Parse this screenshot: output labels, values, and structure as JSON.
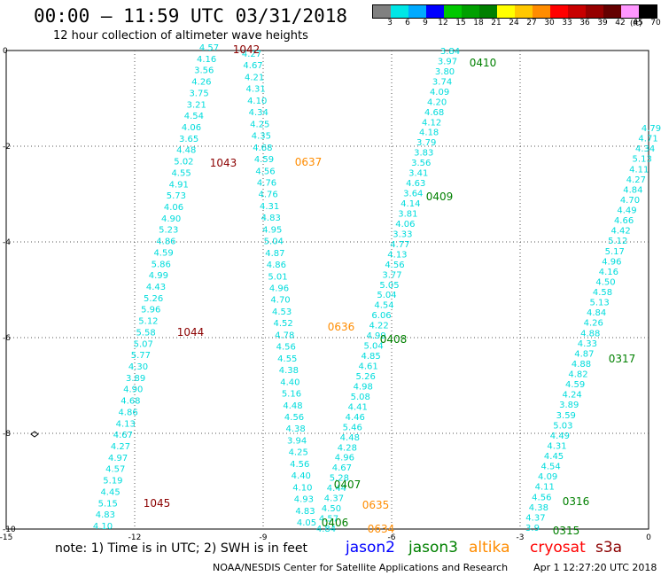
{
  "header": {
    "title": "00:00 – 11:59 UTC 03/31/2018",
    "subtitle": "12 hour collection of altimeter wave heights"
  },
  "colorbar": {
    "unit": "(ft)",
    "bins": [
      {
        "label": "3",
        "color": "#808080"
      },
      {
        "label": "6",
        "color": "#00e6e6"
      },
      {
        "label": "9",
        "color": "#00aaff"
      },
      {
        "label": "12",
        "color": "#0000ff"
      },
      {
        "label": "15",
        "color": "#00c800"
      },
      {
        "label": "18",
        "color": "#00a000"
      },
      {
        "label": "21",
        "color": "#008000"
      },
      {
        "label": "24",
        "color": "#ffff00"
      },
      {
        "label": "27",
        "color": "#ffc800"
      },
      {
        "label": "30",
        "color": "#ff8c00"
      },
      {
        "label": "33",
        "color": "#ff0000"
      },
      {
        "label": "36",
        "color": "#c80000"
      },
      {
        "label": "39",
        "color": "#960000"
      },
      {
        "label": "42",
        "color": "#640000"
      },
      {
        "label": "45",
        "color": "#ff96ff"
      },
      {
        "label": "70",
        "color": "#000000"
      }
    ]
  },
  "axes": {
    "lon_labels": [
      "-15",
      "-12",
      "-9",
      "-6",
      "-3",
      "0"
    ],
    "lat_labels": [
      "0",
      "-2",
      "-4",
      "-6",
      "-8",
      "-10"
    ]
  },
  "track_labels": [
    {
      "text": "1042",
      "color": "#8b0000"
    },
    {
      "text": "1043",
      "color": "#8b0000"
    },
    {
      "text": "1044",
      "color": "#8b0000"
    },
    {
      "text": "1045",
      "color": "#8b0000"
    },
    {
      "text": "0637",
      "color": "#ff8c00"
    },
    {
      "text": "0636",
      "color": "#ff8c00"
    },
    {
      "text": "0635",
      "color": "#ff8c00"
    },
    {
      "text": "0634",
      "color": "#ff8c00"
    },
    {
      "text": "0410",
      "color": "#008000"
    },
    {
      "text": "0409",
      "color": "#008000"
    },
    {
      "text": "0408",
      "color": "#008000"
    },
    {
      "text": "0407",
      "color": "#008000"
    },
    {
      "text": "0406",
      "color": "#008000"
    },
    {
      "text": "0317",
      "color": "#008000"
    },
    {
      "text": "0316",
      "color": "#008000"
    },
    {
      "text": "0315",
      "color": "#008000"
    }
  ],
  "tracks": [
    {
      "values": [
        "4.57",
        "4.16",
        "3.56",
        "4.26",
        "3.75",
        "3.21",
        "4.54",
        "4.06",
        "3.65",
        "4.48",
        "5.02",
        "4.55",
        "4.91",
        "5.73",
        "4.06",
        "4.90",
        "5.23",
        "4.86",
        "4.59",
        "5.86",
        "4.99",
        "4.43",
        "5.26",
        "5.96",
        "5.12",
        "5.58",
        "5.07",
        "5.77",
        "4.30",
        "3.89",
        "4.90",
        "4.68",
        "4.86",
        "4.13",
        "4.67",
        "4.27",
        "4.97",
        "4.57",
        "5.19",
        "4.45",
        "5.15",
        "4.83",
        "4.10"
      ]
    },
    {
      "values": [
        "4.27",
        "4.67",
        "4.21",
        "4.31",
        "4.10",
        "4.34",
        "4.25",
        "4.35",
        "4.68",
        "4.59",
        "4.56",
        "4.76",
        "4.76",
        "4.31",
        "4.83",
        "4.95",
        "5.04",
        "4.87",
        "4.86",
        "5.01",
        "4.96",
        "4.70",
        "4.53",
        "4.52",
        "4.78",
        "4.56",
        "4.55",
        "4.38",
        "4.40",
        "5.16",
        "4.48",
        "4.56",
        "4.38",
        "3.94",
        "4.25",
        "4.56",
        "4.40",
        "4.10",
        "4.93",
        "4.83",
        "4.05"
      ]
    },
    {
      "values": [
        "3.84",
        "3.97",
        "3.80",
        "3.74",
        "4.09",
        "4.20",
        "4.68",
        "4.12",
        "4.18",
        "3.79",
        "3.83",
        "3.56",
        "3.41",
        "4.63",
        "3.64",
        "4.14",
        "3.81",
        "4.06",
        "3.33",
        "4.77",
        "4.13",
        "4.56",
        "3.77",
        "5.05",
        "5.04",
        "4.54",
        "6.06",
        "4.22",
        "4.99",
        "5.04",
        "4.85",
        "4.61",
        "5.26",
        "4.98",
        "5.08",
        "4.41",
        "4.46",
        "5.46",
        "4.48",
        "4.28",
        "4.96",
        "4.67",
        "5.28",
        "4.44",
        "4.37",
        "4.50",
        "4.57",
        "4.84"
      ]
    },
    {
      "values": [
        "4.79",
        "4.71",
        "4.34",
        "5.13",
        "4.11",
        "4.27",
        "4.84",
        "4.70",
        "4.49",
        "4.66",
        "4.42",
        "5.12",
        "5.17",
        "4.96",
        "4.16",
        "4.50",
        "4.58",
        "5.13",
        "4.84",
        "4.26",
        "4.88",
        "4.33",
        "4.87",
        "4.88",
        "4.82",
        "4.59",
        "4.24",
        "3.89",
        "3.59",
        "5.03",
        "4.49",
        "4.31",
        "4.45",
        "4.54",
        "4.09",
        "4.11",
        "4.56",
        "4.38",
        "4.37",
        "3.9"
      ]
    }
  ],
  "notes": {
    "note": "note:  1) Time is in UTC;  2) SWH is in feet"
  },
  "legend": [
    {
      "label": "jason2",
      "color": "#0000ff"
    },
    {
      "label": "jason3",
      "color": "#008000"
    },
    {
      "label": "altika",
      "color": "#ff8c00"
    },
    {
      "label": "cryosat",
      "color": "#ff0000"
    },
    {
      "label": "s3a",
      "color": "#8b0000"
    }
  ],
  "footer": {
    "credit": "NOAA/NESDIS Center for Satellite Applications and Research",
    "timestamp": "Apr  1 12:27:20 UTC 2018"
  },
  "text_color": "#00dcdc"
}
